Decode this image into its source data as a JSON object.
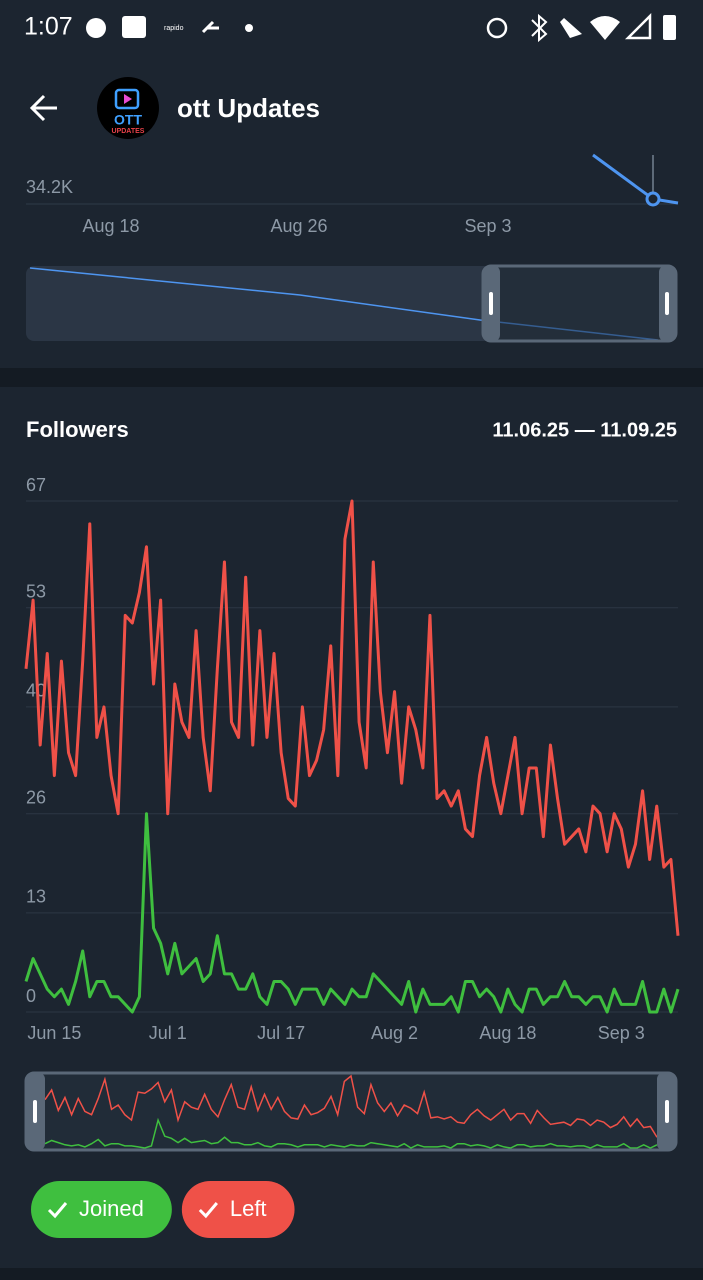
{
  "status_bar": {
    "time": "1:07",
    "app": "rapido"
  },
  "header": {
    "title": "ott Updates",
    "avatar": [
      "OTT",
      "UPDATES"
    ]
  },
  "overview": {
    "y_label": "34.2K",
    "dates": [
      "Aug 18",
      "Aug 26",
      "Sep 3"
    ]
  },
  "chart_data": {
    "type": "line",
    "title": "Followers",
    "subtitle": "11.06.25 — 11.09.25",
    "categories": [
      null,
      null,
      null,
      null,
      "Jun 15",
      null,
      null,
      null,
      null,
      null,
      null,
      null,
      null,
      null,
      null,
      null,
      null,
      null,
      null,
      null,
      "Jul 1",
      null,
      null,
      null,
      null,
      null,
      null,
      null,
      null,
      null,
      null,
      null,
      null,
      null,
      null,
      null,
      "Jul 17",
      null,
      null,
      null,
      null,
      null,
      null,
      null,
      null,
      null,
      null,
      null,
      null,
      null,
      null,
      null,
      "Aug 2",
      null,
      null,
      null,
      null,
      null,
      null,
      null,
      null,
      null,
      null,
      null,
      null,
      null,
      null,
      null,
      "Aug 18",
      null,
      null,
      null,
      null,
      null,
      null,
      null,
      null,
      null,
      null,
      null,
      null,
      null,
      null,
      null,
      "Sep 3",
      null,
      null,
      null,
      null,
      null,
      null,
      null,
      null
    ],
    "series": [
      {
        "name": "Joined",
        "color": "#3fbf3f",
        "values": [
          4,
          7,
          5,
          3,
          2,
          3,
          1,
          4,
          8,
          2,
          4,
          4,
          2,
          2,
          1,
          0,
          2,
          26,
          11,
          9,
          5,
          9,
          5,
          6,
          7,
          4,
          5,
          10,
          5,
          5,
          3,
          3,
          5,
          2,
          1,
          4,
          4,
          3,
          1,
          3,
          3,
          3,
          1,
          3,
          2,
          1,
          3,
          2,
          2,
          5,
          4,
          3,
          2,
          1,
          4,
          0,
          3,
          1,
          1,
          1,
          2,
          0,
          4,
          4,
          2,
          3,
          2,
          0,
          3,
          1,
          0,
          3,
          3,
          1,
          2,
          2,
          4,
          2,
          2,
          1,
          2,
          2,
          0,
          3,
          1,
          1,
          1,
          4,
          0,
          0,
          3,
          0,
          3
        ]
      },
      {
        "name": "Left",
        "color": "#ef5148",
        "values": [
          45,
          54,
          35,
          47,
          31,
          46,
          34,
          31,
          46,
          64,
          36,
          40,
          31,
          26,
          52,
          51,
          55,
          61,
          43,
          54,
          26,
          43,
          38,
          36,
          50,
          36,
          29,
          45,
          59,
          38,
          36,
          57,
          35,
          50,
          36,
          47,
          34,
          28,
          27,
          40,
          31,
          33,
          37,
          48,
          31,
          62,
          67,
          38,
          32,
          59,
          42,
          34,
          42,
          30,
          40,
          37,
          32,
          52,
          28,
          29,
          27,
          29,
          24,
          23,
          31,
          36,
          30,
          26,
          31,
          36,
          26,
          32,
          32,
          23,
          35,
          28,
          22,
          23,
          24,
          21,
          27,
          26,
          21,
          26,
          24,
          19,
          22,
          29,
          20,
          27,
          19,
          20,
          10
        ]
      }
    ],
    "ylim": [
      0,
      67
    ],
    "yticks": [
      0,
      13,
      26,
      40,
      53,
      67
    ],
    "grid": true
  }
}
